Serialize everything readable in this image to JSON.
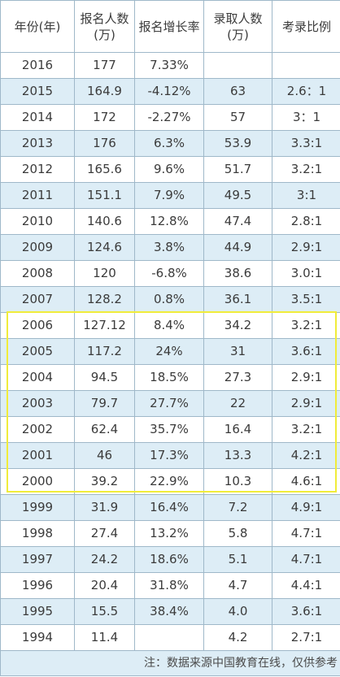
{
  "headers": [
    "年份(年)",
    "报名人数(万)",
    "报名增长率",
    "录取人数(万)",
    "考录比例"
  ],
  "headerLines": [
    [
      "年份(年)"
    ],
    [
      "报名人数",
      "(万)"
    ],
    [
      "报名增长率"
    ],
    [
      "录取人数",
      "(万)"
    ],
    [
      "考录比例"
    ]
  ],
  "rows": [
    [
      "2016",
      "177",
      "7.33%",
      "",
      ""
    ],
    [
      "2015",
      "164.9",
      "-4.12%",
      "63",
      "2.6：1"
    ],
    [
      "2014",
      "172",
      "-2.27%",
      "57",
      "3：1"
    ],
    [
      "2013",
      "176",
      "6.3%",
      "53.9",
      "3.3:1"
    ],
    [
      "2012",
      "165.6",
      "9.6%",
      "51.7",
      "3.2:1"
    ],
    [
      "2011",
      "151.1",
      "7.9%",
      "49.5",
      "3:1"
    ],
    [
      "2010",
      "140.6",
      "12.8%",
      "47.4",
      "2.8:1"
    ],
    [
      "2009",
      "124.6",
      "3.8%",
      "44.9",
      "2.9:1"
    ],
    [
      "2008",
      "120",
      "-6.8%",
      "38.6",
      "3.0:1"
    ],
    [
      "2007",
      "128.2",
      "0.8%",
      "36.1",
      "3.5:1"
    ],
    [
      "2006",
      "127.12",
      "8.4%",
      "34.2",
      "3.2:1"
    ],
    [
      "2005",
      "117.2",
      "24%",
      "31",
      "3.6:1"
    ],
    [
      "2004",
      "94.5",
      "18.5%",
      "27.3",
      "2.9:1"
    ],
    [
      "2003",
      "79.7",
      "27.7%",
      "22",
      "2.9:1"
    ],
    [
      "2002",
      "62.4",
      "35.7%",
      "16.4",
      "3.2:1"
    ],
    [
      "2001",
      "46",
      "17.3%",
      "13.3",
      "4.2:1"
    ],
    [
      "2000",
      "39.2",
      "22.9%",
      "10.3",
      "4.6:1"
    ],
    [
      "1999",
      "31.9",
      "16.4%",
      "7.2",
      "4.9:1"
    ],
    [
      "1998",
      "27.4",
      "13.2%",
      "5.8",
      "4.7:1"
    ],
    [
      "1997",
      "24.2",
      "18.6%",
      "5.1",
      "4.7:1"
    ],
    [
      "1996",
      "20.4",
      "31.8%",
      "4.7",
      "4.4:1"
    ],
    [
      "1995",
      "15.5",
      "38.4%",
      "4.0",
      "3.6:1"
    ],
    [
      "1994",
      "11.4",
      "",
      "4.2",
      "2.7:1"
    ]
  ],
  "note": "注：数据来源中国教育在线，仅供参考",
  "highlight": {
    "from": "2006",
    "to": "2000",
    "color": "#f0ec3a"
  },
  "colors": {
    "rowAlt": "#ddedf6",
    "border": "#9fb8c9",
    "text": "#3b3b3b"
  }
}
